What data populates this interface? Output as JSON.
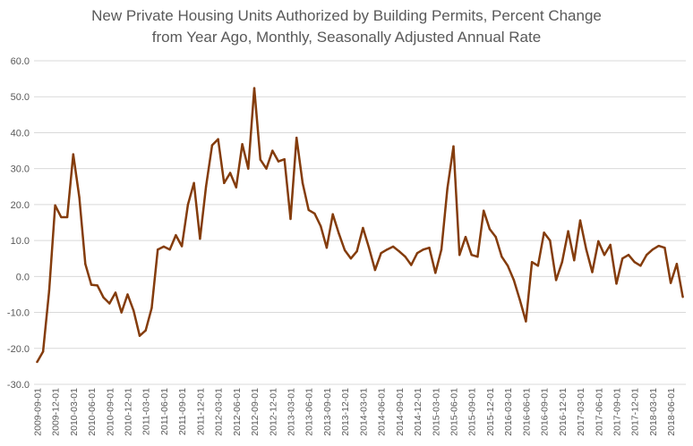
{
  "chart_data": {
    "type": "line",
    "title_lines": [
      "New Private Housing Units Authorized by Building Permits, Percent Change",
      "from Year Ago, Monthly, Seasonally Adjusted Annual Rate"
    ],
    "xlabel": "",
    "ylabel": "",
    "ylim": [
      -30,
      60
    ],
    "yticks": [
      "60.0",
      "50.0",
      "40.0",
      "30.0",
      "20.0",
      "10.0",
      "0.0",
      "-10.0",
      "-20.0",
      "-30.0"
    ],
    "xtick_labels": [
      "2009-09-01",
      "2009-12-01",
      "2010-03-01",
      "2010-06-01",
      "2010-09-01",
      "2010-12-01",
      "2011-03-01",
      "2011-06-01",
      "2011-09-01",
      "2011-12-01",
      "2012-03-01",
      "2012-06-01",
      "2012-09-01",
      "2012-12-01",
      "2013-03-01",
      "2013-06-01",
      "2013-09-01",
      "2013-12-01",
      "2014-03-01",
      "2014-06-01",
      "2014-09-01",
      "2014-12-01",
      "2015-03-01",
      "2015-06-01",
      "2015-09-01",
      "2015-12-01",
      "2016-03-01",
      "2016-06-01",
      "2016-09-01",
      "2016-12-01",
      "2017-03-01",
      "2017-06-01",
      "2017-09-01",
      "2017-12-01",
      "2018-03-01",
      "2018-06-01"
    ],
    "grid": true,
    "line_color": "#843C0C",
    "series": [
      {
        "name": "",
        "x_start": "2009-09-01",
        "frequency": "monthly",
        "values": [
          -23.8,
          -20.9,
          -4.0,
          19.8,
          16.5,
          16.5,
          34.0,
          22.0,
          3.5,
          -2.3,
          -2.5,
          -5.8,
          -7.5,
          -4.5,
          -10.0,
          -5.0,
          -9.5,
          -16.5,
          -15.0,
          -8.8,
          7.5,
          8.3,
          7.5,
          11.5,
          8.4,
          20.0,
          26.0,
          10.5,
          25.0,
          36.5,
          38.2,
          26.0,
          28.8,
          24.8,
          36.8,
          30.0,
          52.4,
          32.5,
          30.0,
          35.0,
          32.0,
          32.6,
          16.0,
          38.6,
          26.0,
          18.5,
          17.5,
          14.0,
          8.0,
          17.3,
          12.0,
          7.3,
          5.0,
          7.0,
          13.5,
          8.0,
          1.8,
          6.5,
          7.5,
          8.3,
          7.0,
          5.5,
          3.2,
          6.5,
          7.5,
          8.0,
          1.0,
          7.5,
          24.5,
          36.2,
          6.0,
          11.0,
          6.0,
          5.5,
          18.3,
          13.2,
          11.0,
          5.5,
          3.0,
          -1.0,
          -6.5,
          -12.5,
          4.0,
          3.0,
          12.2,
          10.0,
          -1.0,
          4.0,
          12.6,
          4.5,
          15.6,
          7.5,
          1.2,
          9.8,
          6.0,
          8.8,
          -2.0,
          5.0,
          6.0,
          4.0,
          3.0,
          6.0,
          7.5,
          8.5,
          8.0,
          -1.8,
          3.5,
          -5.7
        ]
      }
    ]
  }
}
